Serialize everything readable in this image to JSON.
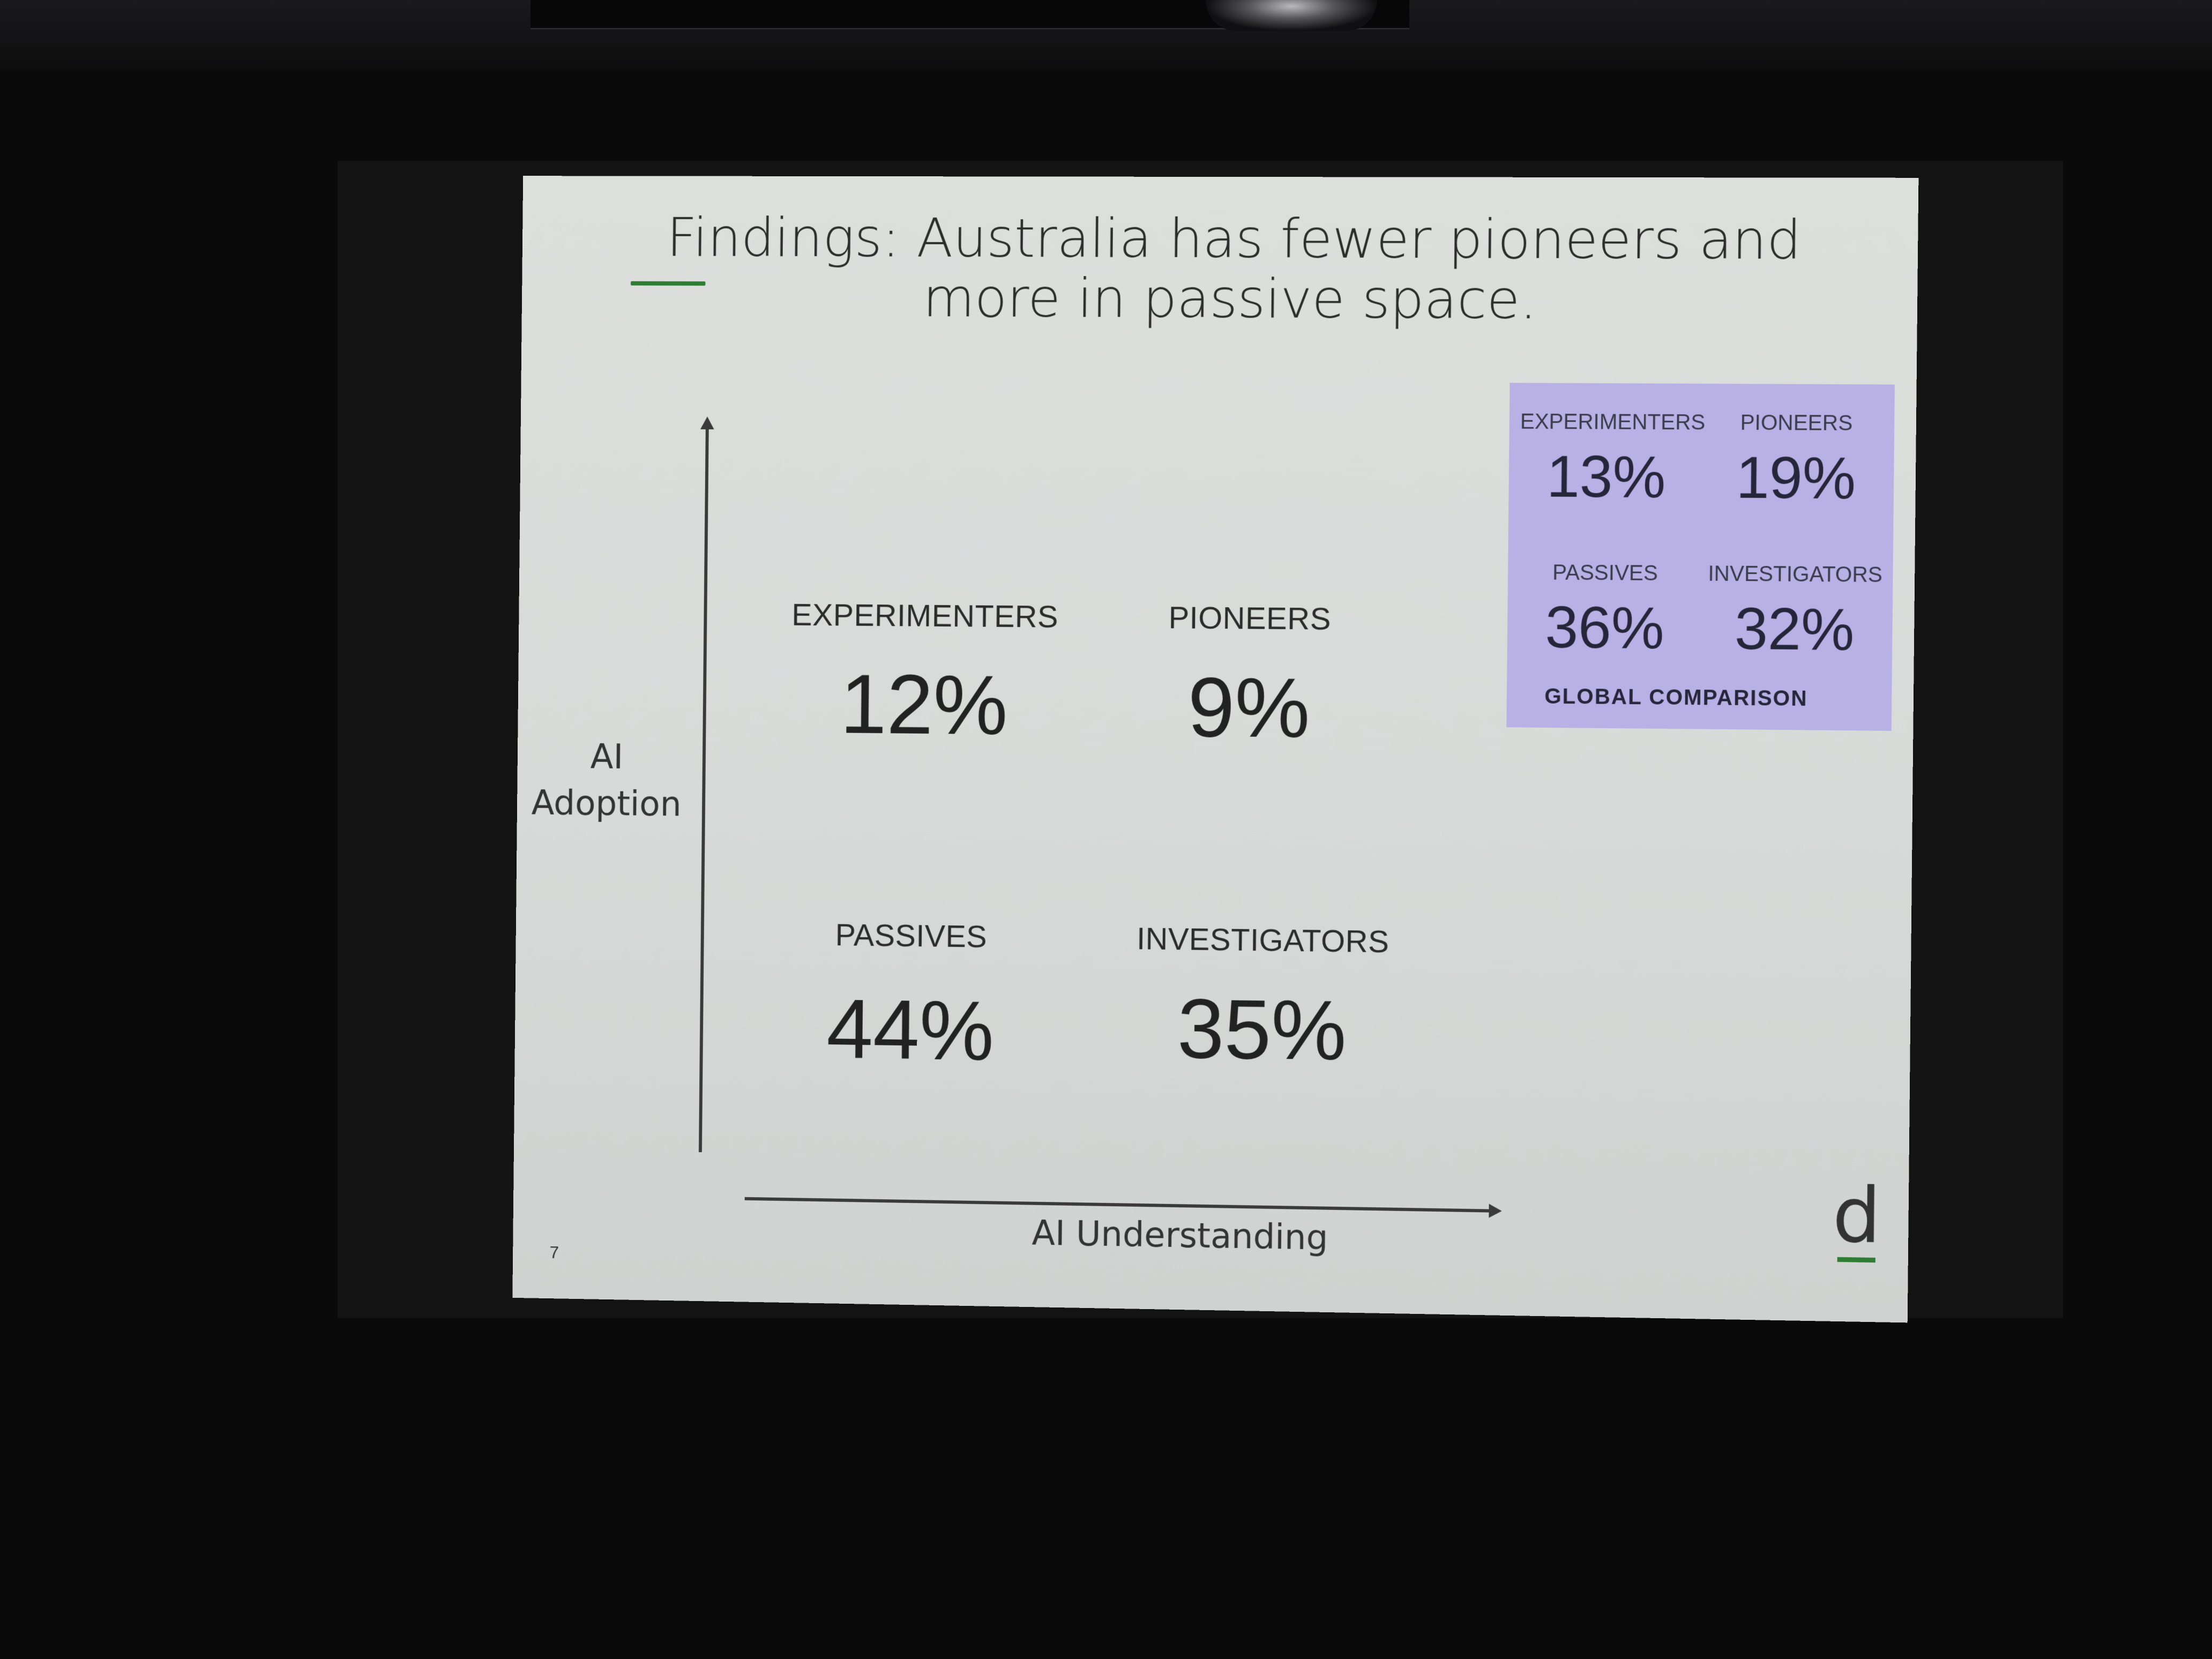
{
  "slide": {
    "title": "Findings: Australia has fewer pioneers and more in passive space.",
    "page_number": "7",
    "logo_letter": "d",
    "y_axis_label_line1": "AI",
    "y_axis_label_line2": "Adoption",
    "x_axis_label": "AI Understanding",
    "quadrants": [
      {
        "name": "EXPERIMENTERS",
        "value": "12%"
      },
      {
        "name": "PIONEERS",
        "value": "9%"
      },
      {
        "name": "PASSIVES",
        "value": "44%"
      },
      {
        "name": "INVESTIGATORS",
        "value": "35%"
      }
    ],
    "global": {
      "caption": "GLOBAL COMPARISON",
      "items": [
        {
          "name": "EXPERIMENTERS",
          "value": "13%"
        },
        {
          "name": "PIONEERS",
          "value": "19%"
        },
        {
          "name": "PASSIVES",
          "value": "36%"
        },
        {
          "name": "INVESTIGATORS",
          "value": "32%"
        }
      ]
    }
  },
  "colors": {
    "accent_green": "#2e7d32",
    "global_box": "#b9b0e6",
    "slide_background": "#d9dcd9"
  }
}
